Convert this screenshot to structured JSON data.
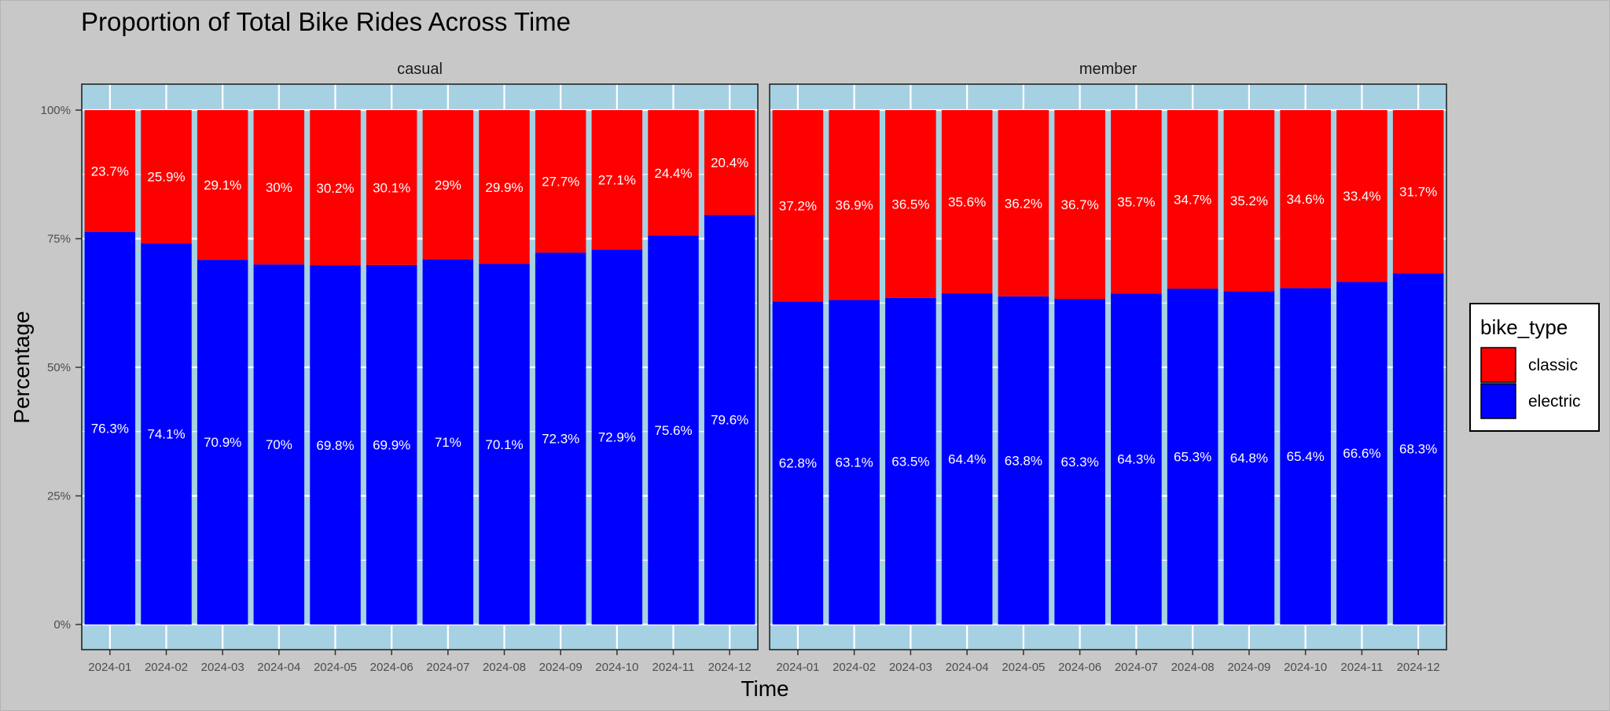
{
  "chart_data": {
    "type": "bar",
    "stacked": true,
    "title": "Proportion of Total Bike Rides Across Time",
    "xlabel": "Time",
    "ylabel": "Percentage",
    "ylim": [
      0,
      100
    ],
    "y_ticks": [
      "0%",
      "25%",
      "50%",
      "75%",
      "100%"
    ],
    "categories": [
      "2024-01",
      "2024-02",
      "2024-03",
      "2024-04",
      "2024-05",
      "2024-06",
      "2024-07",
      "2024-08",
      "2024-09",
      "2024-10",
      "2024-11",
      "2024-12"
    ],
    "legend": {
      "title": "bike_type",
      "position": "right",
      "entries": [
        {
          "name": "classic",
          "color": "#ff0000"
        },
        {
          "name": "electric",
          "color": "#0000ff"
        }
      ]
    },
    "colors": {
      "panel_bg": "#a6d1e3",
      "page_bg": "#c8c8c8",
      "grid": "#ffffff",
      "label_text": "#ffffff"
    },
    "panels": [
      {
        "name": "casual",
        "series": [
          {
            "name": "electric",
            "values": [
              76.3,
              74.1,
              70.9,
              70,
              69.8,
              69.9,
              71,
              70.1,
              72.3,
              72.9,
              75.6,
              79.6
            ],
            "labels": [
              "76.3%",
              "74.1%",
              "70.9%",
              "70%",
              "69.8%",
              "69.9%",
              "71%",
              "70.1%",
              "72.3%",
              "72.9%",
              "75.6%",
              "79.6%"
            ]
          },
          {
            "name": "classic",
            "values": [
              23.7,
              25.9,
              29.1,
              30,
              30.2,
              30.1,
              29,
              29.9,
              27.7,
              27.1,
              24.4,
              20.4
            ],
            "labels": [
              "23.7%",
              "25.9%",
              "29.1%",
              "30%",
              "30.2%",
              "30.1%",
              "29%",
              "29.9%",
              "27.7%",
              "27.1%",
              "24.4%",
              "20.4%"
            ]
          }
        ]
      },
      {
        "name": "member",
        "series": [
          {
            "name": "electric",
            "values": [
              62.8,
              63.1,
              63.5,
              64.4,
              63.8,
              63.3,
              64.3,
              65.3,
              64.8,
              65.4,
              66.6,
              68.3
            ],
            "labels": [
              "62.8%",
              "63.1%",
              "63.5%",
              "64.4%",
              "63.8%",
              "63.3%",
              "64.3%",
              "65.3%",
              "64.8%",
              "65.4%",
              "66.6%",
              "68.3%"
            ]
          },
          {
            "name": "classic",
            "values": [
              37.2,
              36.9,
              36.5,
              35.6,
              36.2,
              36.7,
              35.7,
              34.7,
              35.2,
              34.6,
              33.4,
              31.7
            ],
            "labels": [
              "37.2%",
              "36.9%",
              "36.5%",
              "35.6%",
              "36.2%",
              "36.7%",
              "35.7%",
              "34.7%",
              "35.2%",
              "34.6%",
              "33.4%",
              "31.7%"
            ]
          }
        ]
      }
    ]
  }
}
